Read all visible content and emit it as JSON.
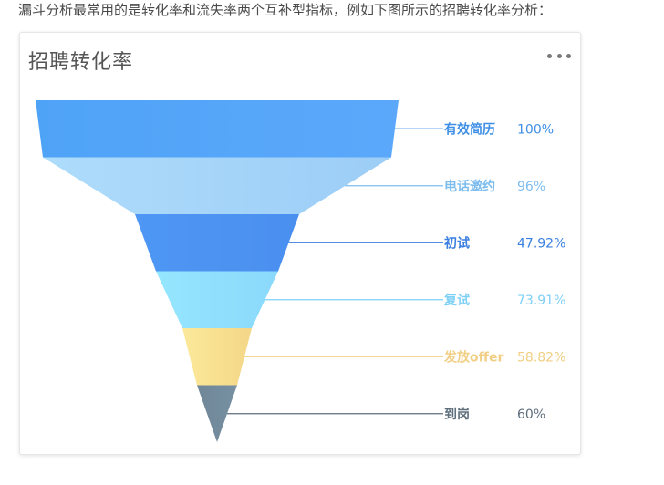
{
  "intro_text": "漏斗分析最常用的是转化率和流失率两个互补型指标，例如下图所示的招聘转化率分析：",
  "card": {
    "title": "招聘转化率",
    "more_icon": "more-dots-icon"
  },
  "chart_data": {
    "type": "funnel",
    "title": "招聘转化率",
    "stages": [
      {
        "label": "有效简历",
        "value_text": "100%",
        "color_from": "#4fa3f7",
        "color_to": "#5ba8fb",
        "label_color": "#3f8fe6"
      },
      {
        "label": "电话邀约",
        "value_text": "96%",
        "color_from": "#aedcfb",
        "color_to": "#9ccdf6",
        "label_color": "#7dbcef"
      },
      {
        "label": "初试",
        "value_text": "47.92%",
        "color_from": "#4f97f4",
        "color_to": "#4a8fef",
        "label_color": "#3a7fe0"
      },
      {
        "label": "复试",
        "value_text": "73.91%",
        "color_from": "#95e6ff",
        "color_to": "#8bd9fb",
        "label_color": "#7fd0f5"
      },
      {
        "label": "发放offer",
        "value_text": "58.82%",
        "color_from": "#fbe99a",
        "color_to": "#f4d687",
        "label_color": "#f0cf84"
      },
      {
        "label": "到岗",
        "value_text": "60%",
        "color_from": "#6f8797",
        "color_to": "#7790a2",
        "label_color": "#5d6e7c"
      }
    ]
  }
}
